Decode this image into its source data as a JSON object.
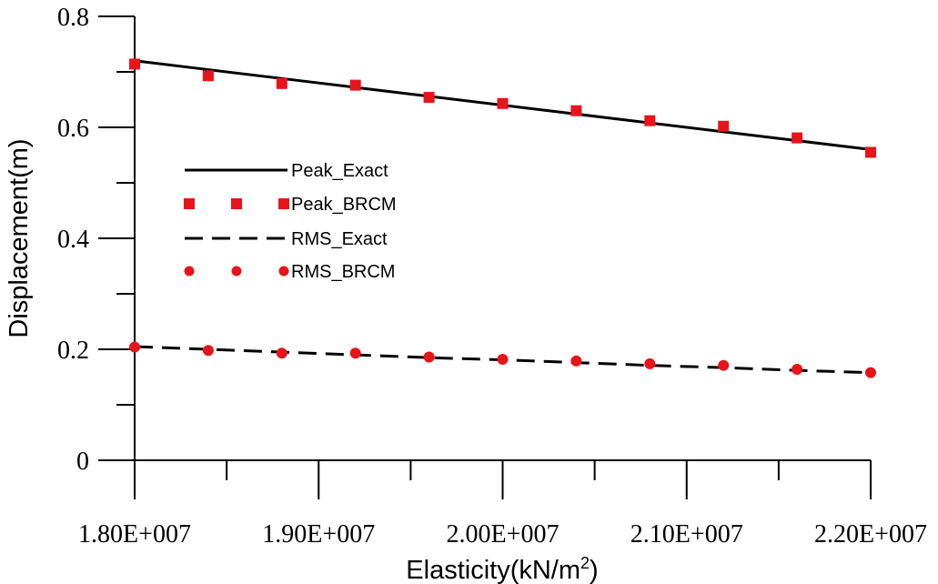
{
  "chart_data": {
    "type": "line",
    "title": "",
    "xlabel": "Elasticity(kN/m",
    "xlabel_sup": "2",
    "xlabel_end": ")",
    "ylabel": "Displacement(m)",
    "xlim": [
      18000000,
      22000000
    ],
    "ylim": [
      0,
      0.8
    ],
    "x_tick_labels": [
      "1.80E+007",
      "1.90E+007",
      "2.00E+007",
      "2.10E+007",
      "2.20E+007"
    ],
    "x_tick_values": [
      18000000,
      19000000,
      20000000,
      21000000,
      22000000
    ],
    "x_minor_tick_values": [
      18500000,
      19500000,
      20500000,
      21500000
    ],
    "y_tick_labels": [
      "0",
      "0.2",
      "0.4",
      "0.6",
      "0.8"
    ],
    "y_tick_values": [
      0,
      0.2,
      0.4,
      0.6,
      0.8
    ],
    "y_minor_tick_values": [
      0.1,
      0.3,
      0.5,
      0.7
    ],
    "grid": false,
    "legend_position": "center-left",
    "x": [
      18000000,
      18400000,
      18800000,
      19200000,
      19600000,
      20000000,
      20400000,
      20800000,
      21200000,
      21600000,
      22000000
    ],
    "series": [
      {
        "name": "Peak_Exact",
        "style": "solid-line",
        "color": "#000000",
        "values": [
          0.72,
          0.704,
          0.688,
          0.672,
          0.656,
          0.64,
          0.624,
          0.608,
          0.592,
          0.576,
          0.56
        ]
      },
      {
        "name": "Peak_BRCM",
        "style": "square-marker",
        "color": "#e8141b",
        "values": [
          0.714,
          0.693,
          0.679,
          0.676,
          0.654,
          0.643,
          0.63,
          0.612,
          0.602,
          0.581,
          0.555
        ]
      },
      {
        "name": "RMS_Exact",
        "style": "dashed-line",
        "color": "#000000",
        "values": [
          0.205,
          0.2,
          0.195,
          0.19,
          0.185,
          0.181,
          0.176,
          0.171,
          0.167,
          0.162,
          0.158
        ]
      },
      {
        "name": "RMS_BRCM",
        "style": "circle-marker",
        "color": "#e8141b",
        "values": [
          0.204,
          0.198,
          0.193,
          0.193,
          0.186,
          0.182,
          0.179,
          0.174,
          0.171,
          0.164,
          0.158
        ]
      }
    ]
  }
}
